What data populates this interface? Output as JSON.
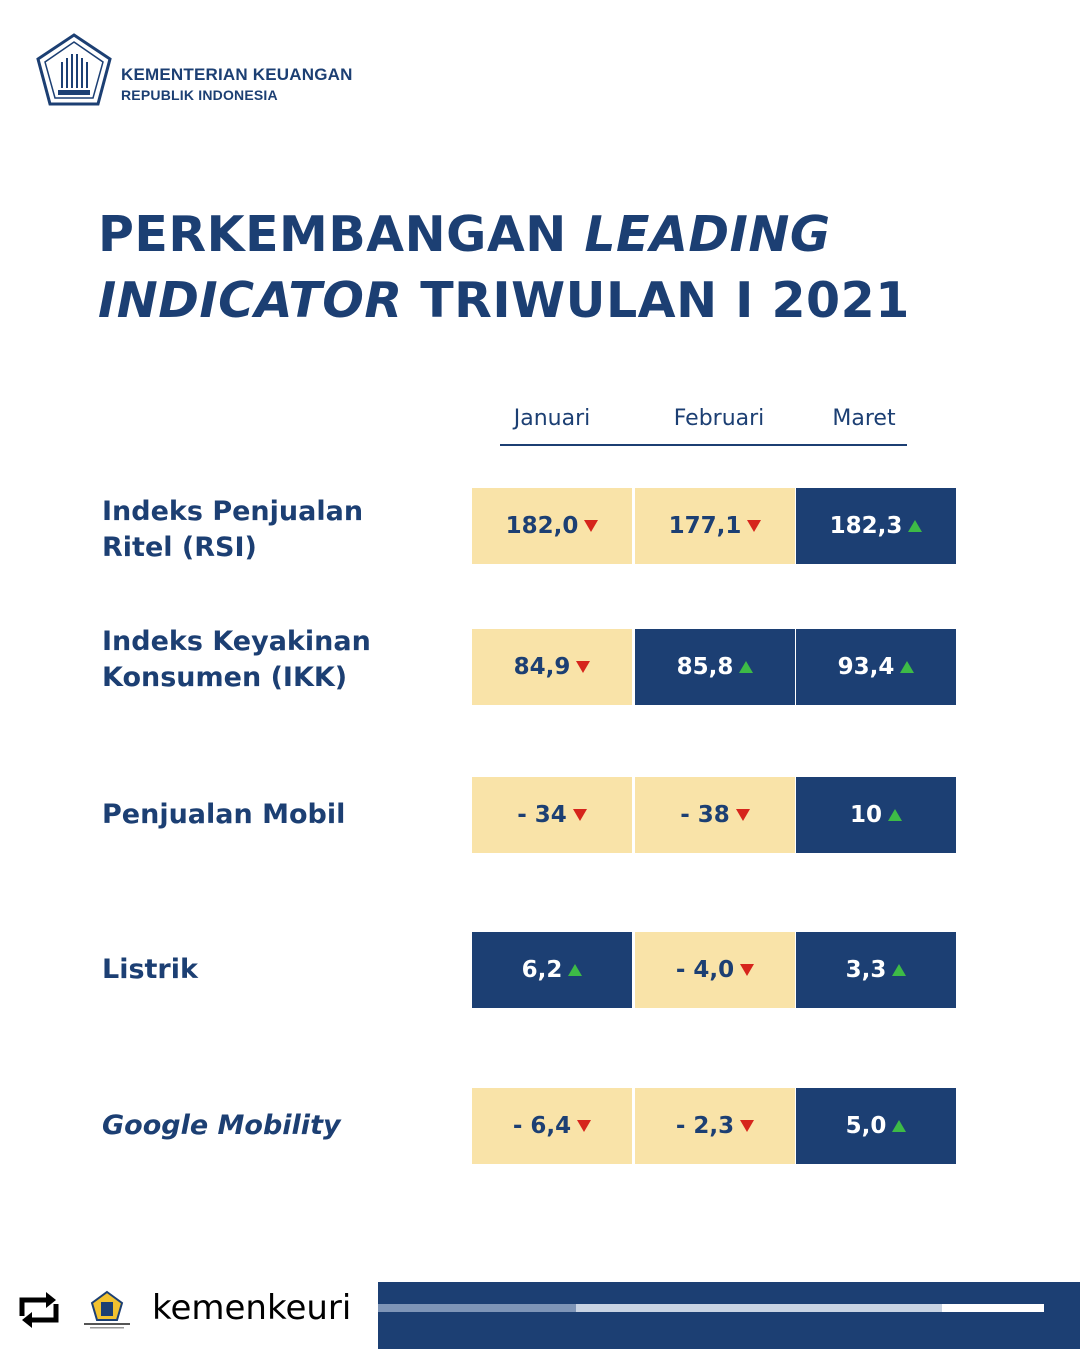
{
  "header": {
    "org_line1": "KEMENTERIAN KEUANGAN",
    "org_line2": "REPUBLIK INDONESIA"
  },
  "title": {
    "line1_a": "PERKEMBANGAN ",
    "line1_b": "LEADING",
    "line2_a": "INDICATOR",
    "line2_b": " TRIWULAN I 2021"
  },
  "months": [
    "Januari",
    "Februari",
    "Maret"
  ],
  "rows": [
    {
      "label_line1": "Indeks Penjualan",
      "label_line2": "Ritel (RSI)",
      "cells": [
        {
          "value": "182,0",
          "trend": "down",
          "style": "yellow"
        },
        {
          "value": "177,1",
          "trend": "down",
          "style": "yellow"
        },
        {
          "value": "182,3",
          "trend": "up",
          "style": "blue"
        }
      ]
    },
    {
      "label_line1": "Indeks Keyakinan",
      "label_line2": "Konsumen (IKK)",
      "cells": [
        {
          "value": "84,9",
          "trend": "down",
          "style": "yellow"
        },
        {
          "value": "85,8",
          "trend": "up",
          "style": "blue"
        },
        {
          "value": "93,4",
          "trend": "up",
          "style": "blue"
        }
      ]
    },
    {
      "label_line1": "Penjualan Mobil",
      "label_line2": "",
      "cells": [
        {
          "value": "- 34",
          "trend": "down",
          "style": "yellow"
        },
        {
          "value": "- 38",
          "trend": "down",
          "style": "yellow"
        },
        {
          "value": "10",
          "trend": "up",
          "style": "blue"
        }
      ]
    },
    {
      "label_line1": "Listrik",
      "label_line2": "",
      "cells": [
        {
          "value": "6,2",
          "trend": "up",
          "style": "blue"
        },
        {
          "value": "- 4,0",
          "trend": "down",
          "style": "yellow"
        },
        {
          "value": "3,3",
          "trend": "up",
          "style": "blue"
        }
      ]
    },
    {
      "label_line1": "Google Mobility",
      "label_line2": "",
      "cells": [
        {
          "value": "- 6,4",
          "trend": "down",
          "style": "yellow"
        },
        {
          "value": "- 2,3",
          "trend": "down",
          "style": "yellow"
        },
        {
          "value": "5,0",
          "trend": "up",
          "style": "blue"
        }
      ]
    }
  ],
  "colors": {
    "navy": "#1c3f73",
    "cream": "#f9e3a8",
    "down_arrow": "#d6251c",
    "up_arrow": "#3dbb46"
  },
  "footer": {
    "handle": "kemenkeuri",
    "repost_icon": "repost-icon"
  }
}
